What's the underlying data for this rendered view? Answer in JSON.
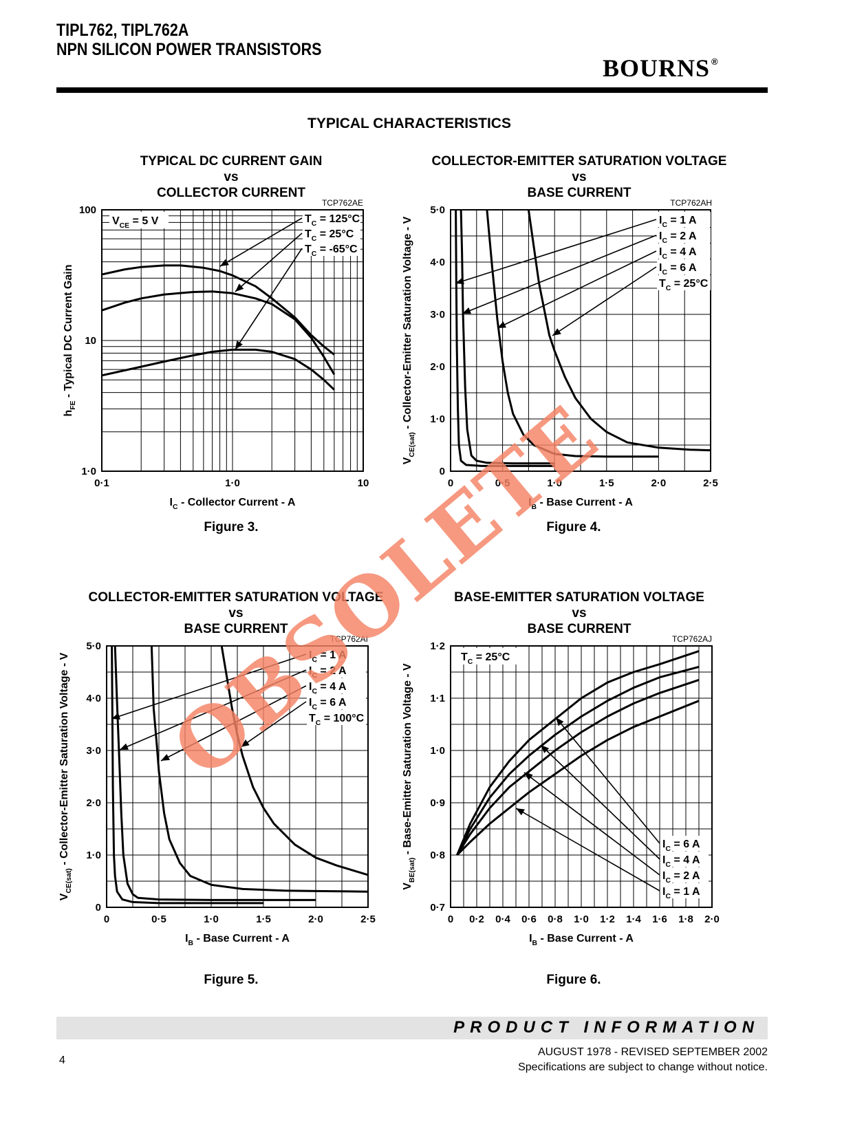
{
  "header": {
    "title_line1": "TIPL762, TIPL762A",
    "title_line2": "NPN SILICON POWER TRANSISTORS",
    "brand": "BOURNS",
    "brand_mark": "®"
  },
  "section_title": "TYPICAL CHARACTERISTICS",
  "watermark": "OBSOLETE",
  "chart_data": [
    {
      "type": "line",
      "title_lines": [
        "TYPICAL DC CURRENT GAIN",
        "vs",
        "COLLECTOR CURRENT"
      ],
      "code": "TCP762AE",
      "figure": "Figure 3.",
      "xscale": "log",
      "yscale": "log",
      "xlim": [
        0.1,
        10
      ],
      "ylim": [
        1,
        100
      ],
      "xticks": [
        {
          "v": 0.1,
          "l": "0·1"
        },
        {
          "v": 1,
          "l": "1·0"
        },
        {
          "v": 10,
          "l": "10"
        }
      ],
      "yticks": [
        {
          "v": 1,
          "l": "1·0"
        },
        {
          "v": 10,
          "l": "10"
        },
        {
          "v": 100,
          "l": "100"
        }
      ],
      "xlabel": {
        "pre": "I",
        "sub": "C",
        "post": " - Collector Current - A"
      },
      "ylabel": {
        "pre": "h",
        "sub": "FE",
        "post": " - Typical DC Current Gain"
      },
      "condition": {
        "pre": "V",
        "sub": "CE",
        "post": " = 5 V"
      },
      "legend": [
        {
          "pre": "T",
          "sub": "C",
          "post": " = 125°C",
          "series": 0
        },
        {
          "pre": "T",
          "sub": "C",
          "post": " =   25°C",
          "series": 1
        },
        {
          "pre": "T",
          "sub": "C",
          "post": " =  -65°C",
          "series": 2
        }
      ],
      "series": [
        {
          "name": "TC = 125°C",
          "x": [
            0.1,
            0.15,
            0.2,
            0.3,
            0.4,
            0.6,
            0.8,
            1.0,
            1.5,
            2.0,
            3.0,
            4.0,
            5.0,
            6.0
          ],
          "y": [
            32,
            35,
            36.5,
            37.5,
            37.5,
            36,
            34,
            31.5,
            26,
            21,
            15,
            11,
            9,
            7.8
          ]
        },
        {
          "name": "TC = 25°C",
          "x": [
            0.1,
            0.15,
            0.2,
            0.3,
            0.5,
            0.7,
            1.0,
            1.5,
            2.0,
            3.0,
            4.0,
            5.0,
            6.0
          ],
          "y": [
            17,
            19.5,
            21,
            22.5,
            23.5,
            23.7,
            23,
            21,
            19,
            14.5,
            10.5,
            7.5,
            5.5
          ]
        },
        {
          "name": "TC = -65°C",
          "x": [
            0.1,
            0.2,
            0.3,
            0.5,
            0.7,
            1.0,
            1.5,
            2.0,
            3.0,
            4.0,
            5.0,
            6.0
          ],
          "y": [
            5.4,
            6.3,
            6.9,
            7.7,
            8.2,
            8.5,
            8.5,
            8.2,
            7.2,
            6.0,
            5.0,
            4.2
          ]
        }
      ]
    },
    {
      "type": "line",
      "title_lines": [
        "COLLECTOR-EMITTER SATURATION VOLTAGE",
        "vs",
        "BASE CURRENT"
      ],
      "code": "TCP762AH",
      "figure": "Figure 4.",
      "xscale": "linear",
      "yscale": "linear",
      "xlim": [
        0,
        2.5
      ],
      "ylim": [
        0,
        5
      ],
      "xticks": [
        {
          "v": 0,
          "l": "0"
        },
        {
          "v": 0.5,
          "l": "0·5"
        },
        {
          "v": 1,
          "l": "1·0"
        },
        {
          "v": 1.5,
          "l": "1·5"
        },
        {
          "v": 2,
          "l": "2·0"
        },
        {
          "v": 2.5,
          "l": "2·5"
        }
      ],
      "yticks": [
        {
          "v": 0,
          "l": "0"
        },
        {
          "v": 1,
          "l": "1·0"
        },
        {
          "v": 2,
          "l": "2·0"
        },
        {
          "v": 3,
          "l": "3·0"
        },
        {
          "v": 4,
          "l": "4·0"
        },
        {
          "v": 5,
          "l": "5·0"
        }
      ],
      "xlabel": {
        "pre": "I",
        "sub": "B",
        "post": " - Base Current - A"
      },
      "ylabel": {
        "pre": "V",
        "sub": "CE(sat)",
        "post": " - Collector-Emitter Saturation Voltage - V"
      },
      "legend": [
        {
          "pre": "I",
          "sub": "C",
          "post": "  = 1 A",
          "series": 0
        },
        {
          "pre": "I",
          "sub": "C",
          "post": "  = 2 A",
          "series": 1
        },
        {
          "pre": "I",
          "sub": "C",
          "post": "  = 4 A",
          "series": 2
        },
        {
          "pre": "I",
          "sub": "C",
          "post": "  = 6 A",
          "series": 3
        },
        {
          "pre": "T",
          "sub": "C",
          "post": " = 25°C"
        }
      ],
      "series": [
        {
          "name": "IC = 1 A",
          "x": [
            0.05,
            0.055,
            0.06,
            0.07,
            0.08,
            0.1,
            0.15,
            0.3,
            0.6,
            1.0
          ],
          "y": [
            5.0,
            3.6,
            2.4,
            1.2,
            0.5,
            0.2,
            0.12,
            0.1,
            0.1,
            0.1
          ]
        },
        {
          "name": "IC = 2 A",
          "x": [
            0.1,
            0.11,
            0.12,
            0.14,
            0.16,
            0.2,
            0.25,
            0.35,
            0.6,
            1.0
          ],
          "y": [
            5.0,
            4.2,
            3.0,
            1.6,
            0.8,
            0.3,
            0.2,
            0.16,
            0.15,
            0.15
          ]
        },
        {
          "name": "IC = 4 A",
          "x": [
            0.35,
            0.4,
            0.45,
            0.5,
            0.55,
            0.6,
            0.7,
            0.8,
            1.0,
            1.2,
            1.5,
            2.0
          ],
          "y": [
            5.0,
            3.9,
            2.9,
            2.1,
            1.5,
            1.1,
            0.7,
            0.5,
            0.33,
            0.29,
            0.28,
            0.28
          ]
        },
        {
          "name": "IC = 6 A",
          "x": [
            0.75,
            0.85,
            0.95,
            1.0,
            1.1,
            1.2,
            1.35,
            1.5,
            1.7,
            2.0,
            2.3,
            2.5
          ],
          "y": [
            5.0,
            3.6,
            2.6,
            2.3,
            1.8,
            1.4,
            1.0,
            0.75,
            0.55,
            0.45,
            0.41,
            0.4
          ]
        }
      ]
    },
    {
      "type": "line",
      "title_lines": [
        "COLLECTOR-EMITTER SATURATION VOLTAGE",
        "vs",
        "BASE CURRENT"
      ],
      "code": "TCP762AI",
      "figure": "Figure 5.",
      "xscale": "linear",
      "yscale": "linear",
      "xlim": [
        0,
        2.5
      ],
      "ylim": [
        0,
        5
      ],
      "xticks": [
        {
          "v": 0,
          "l": "0"
        },
        {
          "v": 0.5,
          "l": "0·5"
        },
        {
          "v": 1,
          "l": "1·0"
        },
        {
          "v": 1.5,
          "l": "1·5"
        },
        {
          "v": 2,
          "l": "2·0"
        },
        {
          "v": 2.5,
          "l": "2·5"
        }
      ],
      "yticks": [
        {
          "v": 0,
          "l": "0"
        },
        {
          "v": 1,
          "l": "1·0"
        },
        {
          "v": 2,
          "l": "2·0"
        },
        {
          "v": 3,
          "l": "3·0"
        },
        {
          "v": 4,
          "l": "4·0"
        },
        {
          "v": 5,
          "l": "5·0"
        }
      ],
      "xlabel": {
        "pre": "I",
        "sub": "B",
        "post": " - Base Current - A"
      },
      "ylabel": {
        "pre": "V",
        "sub": "CE(sat)",
        "post": " - Collector-Emitter Saturation Voltage - V"
      },
      "legend": [
        {
          "pre": "I",
          "sub": "C",
          "post": "  = 1 A",
          "series": 0
        },
        {
          "pre": "I",
          "sub": "C",
          "post": "  = 2 A",
          "series": 1
        },
        {
          "pre": "I",
          "sub": "C",
          "post": "  = 4 A",
          "series": 2
        },
        {
          "pre": "I",
          "sub": "C",
          "post": "  = 6 A",
          "series": 3
        },
        {
          "pre": "T",
          "sub": "C",
          "post": " = 100°C"
        }
      ],
      "series": [
        {
          "name": "IC = 1 A",
          "x": [
            0.05,
            0.055,
            0.06,
            0.07,
            0.08,
            0.1,
            0.15,
            0.25,
            0.5,
            1.0,
            1.5
          ],
          "y": [
            5.0,
            3.6,
            2.3,
            1.0,
            0.6,
            0.3,
            0.15,
            0.1,
            0.08,
            0.08,
            0.08
          ]
        },
        {
          "name": "IC = 2 A",
          "x": [
            0.08,
            0.1,
            0.12,
            0.14,
            0.16,
            0.2,
            0.25,
            0.3,
            0.5,
            1.0,
            2.0
          ],
          "y": [
            5.0,
            3.9,
            2.9,
            1.8,
            1.0,
            0.45,
            0.25,
            0.18,
            0.15,
            0.14,
            0.14
          ]
        },
        {
          "name": "IC = 4 A",
          "x": [
            0.43,
            0.45,
            0.48,
            0.5,
            0.55,
            0.6,
            0.7,
            0.8,
            1.0,
            1.3,
            1.7,
            2.0,
            2.5
          ],
          "y": [
            5.0,
            3.8,
            3.1,
            2.6,
            1.8,
            1.3,
            0.85,
            0.6,
            0.43,
            0.35,
            0.32,
            0.31,
            0.3
          ]
        },
        {
          "name": "IC = 6 A",
          "x": [
            1.1,
            1.15,
            1.2,
            1.25,
            1.3,
            1.4,
            1.5,
            1.6,
            1.8,
            2.0,
            2.2,
            2.5
          ],
          "y": [
            5.0,
            4.4,
            3.8,
            3.3,
            2.9,
            2.3,
            1.9,
            1.6,
            1.2,
            0.95,
            0.8,
            0.62
          ]
        }
      ]
    },
    {
      "type": "line",
      "title_lines": [
        "BASE-EMITTER SATURATION VOLTAGE",
        "vs",
        "BASE CURRENT"
      ],
      "code": "TCP762AJ",
      "figure": "Figure 6.",
      "xscale": "linear",
      "yscale": "linear",
      "xlim": [
        0,
        2
      ],
      "ylim": [
        0.7,
        1.2
      ],
      "xticks": [
        {
          "v": 0,
          "l": "0"
        },
        {
          "v": 0.2,
          "l": "0·2"
        },
        {
          "v": 0.4,
          "l": "0·4"
        },
        {
          "v": 0.6,
          "l": "0·6"
        },
        {
          "v": 0.8,
          "l": "0·8"
        },
        {
          "v": 1,
          "l": "1·0"
        },
        {
          "v": 1.2,
          "l": "1·2"
        },
        {
          "v": 1.4,
          "l": "1·4"
        },
        {
          "v": 1.6,
          "l": "1·6"
        },
        {
          "v": 1.8,
          "l": "1·8"
        },
        {
          "v": 2,
          "l": "2·0"
        }
      ],
      "yticks": [
        {
          "v": 0.7,
          "l": "0·7"
        },
        {
          "v": 0.8,
          "l": "0·8"
        },
        {
          "v": 0.9,
          "l": "0·9"
        },
        {
          "v": 1.0,
          "l": "1·0"
        },
        {
          "v": 1.1,
          "l": "1·1"
        },
        {
          "v": 1.2,
          "l": "1·2"
        }
      ],
      "xlabel": {
        "pre": "I",
        "sub": "B",
        "post": " - Base Current - A"
      },
      "ylabel": {
        "pre": "V",
        "sub": "BE(sat)",
        "post": " - Base-Emitter Saturation Voltage - V"
      },
      "condition": {
        "pre": "T",
        "sub": "C",
        "post": " = 25°C"
      },
      "legend": [
        {
          "pre": "I",
          "sub": "C",
          "post": " = 6 A",
          "series": 0
        },
        {
          "pre": "I",
          "sub": "C",
          "post": " = 4 A",
          "series": 1
        },
        {
          "pre": "I",
          "sub": "C",
          "post": " = 2 A",
          "series": 2
        },
        {
          "pre": "I",
          "sub": "C",
          "post": " = 1 A",
          "series": 3
        }
      ],
      "series": [
        {
          "name": "IC = 6 A",
          "x": [
            0.05,
            0.15,
            0.3,
            0.45,
            0.6,
            0.8,
            1.0,
            1.2,
            1.4,
            1.6,
            1.9
          ],
          "y": [
            0.8,
            0.86,
            0.93,
            0.98,
            1.02,
            1.06,
            1.1,
            1.13,
            1.15,
            1.165,
            1.19
          ]
        },
        {
          "name": "IC = 4 A",
          "x": [
            0.05,
            0.15,
            0.3,
            0.45,
            0.6,
            0.8,
            1.0,
            1.2,
            1.4,
            1.6,
            1.9
          ],
          "y": [
            0.8,
            0.85,
            0.91,
            0.955,
            0.99,
            1.03,
            1.065,
            1.095,
            1.12,
            1.14,
            1.16
          ]
        },
        {
          "name": "IC = 2 A",
          "x": [
            0.05,
            0.15,
            0.3,
            0.45,
            0.6,
            0.8,
            1.0,
            1.2,
            1.4,
            1.6,
            1.9
          ],
          "y": [
            0.8,
            0.84,
            0.89,
            0.93,
            0.96,
            1.0,
            1.035,
            1.065,
            1.09,
            1.11,
            1.135
          ]
        },
        {
          "name": "IC = 1 A",
          "x": [
            0.05,
            0.15,
            0.3,
            0.45,
            0.6,
            0.8,
            1.0,
            1.2,
            1.4,
            1.6,
            1.9
          ],
          "y": [
            0.8,
            0.825,
            0.86,
            0.89,
            0.92,
            0.955,
            0.99,
            1.02,
            1.045,
            1.065,
            1.095
          ]
        }
      ]
    }
  ],
  "footer": {
    "product_information": "PRODUCT   INFORMATION",
    "date": "AUGUST 1978 - REVISED SEPTEMBER 2002",
    "notice": "Specifications are subject to change without notice.",
    "page_number": "4"
  }
}
